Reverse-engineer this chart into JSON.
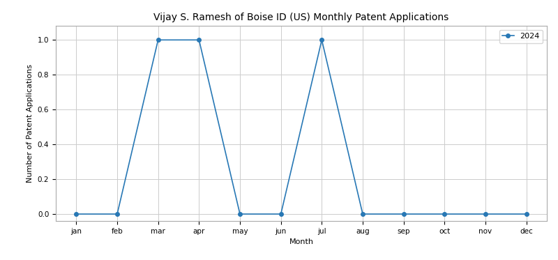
{
  "title": "Vijay S. Ramesh of Boise ID (US) Monthly Patent Applications",
  "xlabel": "Month",
  "ylabel": "Number of Patent Applications",
  "months": [
    "jan",
    "feb",
    "mar",
    "apr",
    "may",
    "jun",
    "jul",
    "aug",
    "sep",
    "oct",
    "nov",
    "dec"
  ],
  "values_2024": [
    0,
    0,
    1,
    1,
    0,
    0,
    1,
    0,
    0,
    0,
    0,
    0
  ],
  "line_color": "#2878b5",
  "marker": "o",
  "markersize": 4,
  "linewidth": 1.2,
  "legend_label": "2024",
  "ylim": [
    -0.04,
    1.08
  ],
  "yticks": [
    0.0,
    0.2,
    0.4,
    0.6,
    0.8,
    1.0
  ],
  "grid_color": "#cccccc",
  "background_color": "#ffffff",
  "title_fontsize": 10,
  "axis_label_fontsize": 8,
  "tick_fontsize": 7.5,
  "legend_fontsize": 8
}
